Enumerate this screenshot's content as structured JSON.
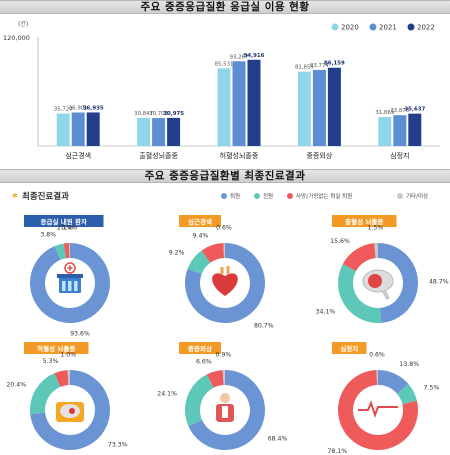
{
  "chart_data": [
    {
      "type": "bar",
      "title": "주요 중증응급질환 응급실 이용 현황",
      "unit": "(건)",
      "ytick_top": "120,000",
      "ylim": [
        0,
        120000
      ],
      "categories": [
        "심근경색",
        "출혈성뇌졸중",
        "허혈성뇌졸중",
        "중증외상",
        "심정지"
      ],
      "series": [
        {
          "name": "2020",
          "color": "#8fd6ea",
          "values": [
            35720,
            30847,
            85531,
            81855,
            31869
          ],
          "labels": [
            "35,720",
            "30,847",
            "85,531",
            "81,855",
            "31,869"
          ]
        },
        {
          "name": "2021",
          "color": "#5b8fd2",
          "values": [
            36901,
            30703,
            93267,
            83774,
            33876
          ],
          "labels": [
            "36,901",
            "30,703",
            "93,267",
            "83,774",
            "33,876"
          ]
        },
        {
          "name": "2022",
          "color": "#233f8c",
          "values": [
            36935,
            30975,
            94916,
            86159,
            35637
          ],
          "labels": [
            "36,935",
            "30,975",
            "94,916",
            "86,159",
            "35,637"
          ]
        }
      ],
      "grid": false,
      "legend_position": "top-right"
    },
    {
      "type": "pie",
      "title": "주요 중증응급질환별 최종진료결과",
      "section_label": "최종진료결과",
      "legend": [
        {
          "name": "퇴원",
          "color": "#6a94d4"
        },
        {
          "name": "전원",
          "color": "#5ec8b8"
        },
        {
          "name": "사망(가망없는 퇴실 퇴원",
          "color": "#ef5b5b"
        },
        {
          "name": "기타/미상",
          "color": "#c8c8c8"
        }
      ],
      "charts": [
        {
          "name": "응급실 내원 환자",
          "tag_color": "#2b5fad",
          "icon": "hospital-icon",
          "values": [
            93.6,
            3.8,
            2.1,
            0.4
          ],
          "labels": [
            "93.6%",
            "3.8%",
            "2.1%",
            "0.4%"
          ]
        },
        {
          "name": "심근경색",
          "tag_color": "#f39a26",
          "icon": "heart-icon",
          "values": [
            80.7,
            9.2,
            9.4,
            0.6
          ],
          "labels": [
            "80.7%",
            "9.2%",
            "9.4%",
            "0.6%"
          ]
        },
        {
          "name": "출혈성 뇌졸중",
          "tag_color": "#f39a26",
          "icon": "brain-icon",
          "values": [
            48.7,
            34.1,
            15.6,
            1.5
          ],
          "labels": [
            "48.7%",
            "34.1%",
            "15.6%",
            "1.5%"
          ]
        },
        {
          "name": "허혈성 뇌졸중",
          "tag_color": "#f39a26",
          "icon": "brain-scan-icon",
          "values": [
            73.3,
            20.4,
            5.3,
            1.0
          ],
          "labels": [
            "73.3%",
            "20.4%",
            "5.3%",
            "1.0%"
          ]
        },
        {
          "name": "중증외상",
          "tag_color": "#f39a26",
          "icon": "injured-person-icon",
          "values": [
            68.4,
            24.1,
            6.6,
            0.9
          ],
          "labels": [
            "68.4%",
            "24.1%",
            "6.6%",
            "0.9%"
          ]
        },
        {
          "name": "심정지",
          "tag_color": "#f39a26",
          "icon": "heartbeat-icon",
          "values": [
            13.8,
            7.5,
            78.1,
            0.6
          ],
          "labels": [
            "13.8%",
            "7.5%",
            "78.1%",
            "0.6%"
          ]
        }
      ]
    }
  ]
}
